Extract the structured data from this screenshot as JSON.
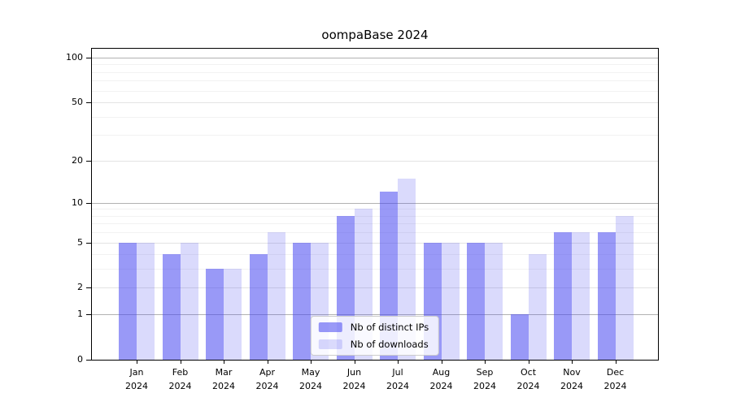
{
  "chart_data": {
    "type": "bar",
    "title": "oompaBase 2024",
    "categories": [
      "Jan",
      "Feb",
      "Mar",
      "Apr",
      "May",
      "Jun",
      "Jul",
      "Aug",
      "Sep",
      "Oct",
      "Nov",
      "Dec"
    ],
    "year_label": "2024",
    "series": [
      {
        "name": "Nb of distinct IPs",
        "color": "rgba(70,70,240,0.55)",
        "values": [
          5,
          4,
          3,
          4,
          5,
          8,
          12,
          5,
          5,
          1,
          6,
          6
        ]
      },
      {
        "name": "Nb of downloads",
        "color": "rgba(70,70,240,0.20)",
        "values": [
          5,
          5,
          3,
          6,
          5,
          9,
          15,
          5,
          5,
          4,
          6,
          8
        ]
      }
    ],
    "y_axis": {
      "scale": "log10(1+x)",
      "tick_values": [
        0,
        1,
        2,
        5,
        10,
        20,
        50,
        100
      ],
      "decade_gridlines": [
        1,
        10,
        100
      ],
      "major_gridlines": [
        2,
        5,
        20,
        50
      ],
      "minor_gridlines": [
        3,
        4,
        6,
        7,
        8,
        9,
        30,
        40,
        60,
        70,
        80,
        90
      ],
      "ylim": [
        0,
        118
      ]
    },
    "legend": {
      "position": "lower center"
    },
    "grid": true
  },
  "colors": {
    "decade_grid": "#b2b2b2",
    "major_grid": "#e3e3e3",
    "minor_grid": "#f2f2f2",
    "spine": "#000000",
    "text": "#000000",
    "legend_border": "#cccccc",
    "legend_bg": "rgba(255,255,255,0.82)"
  }
}
